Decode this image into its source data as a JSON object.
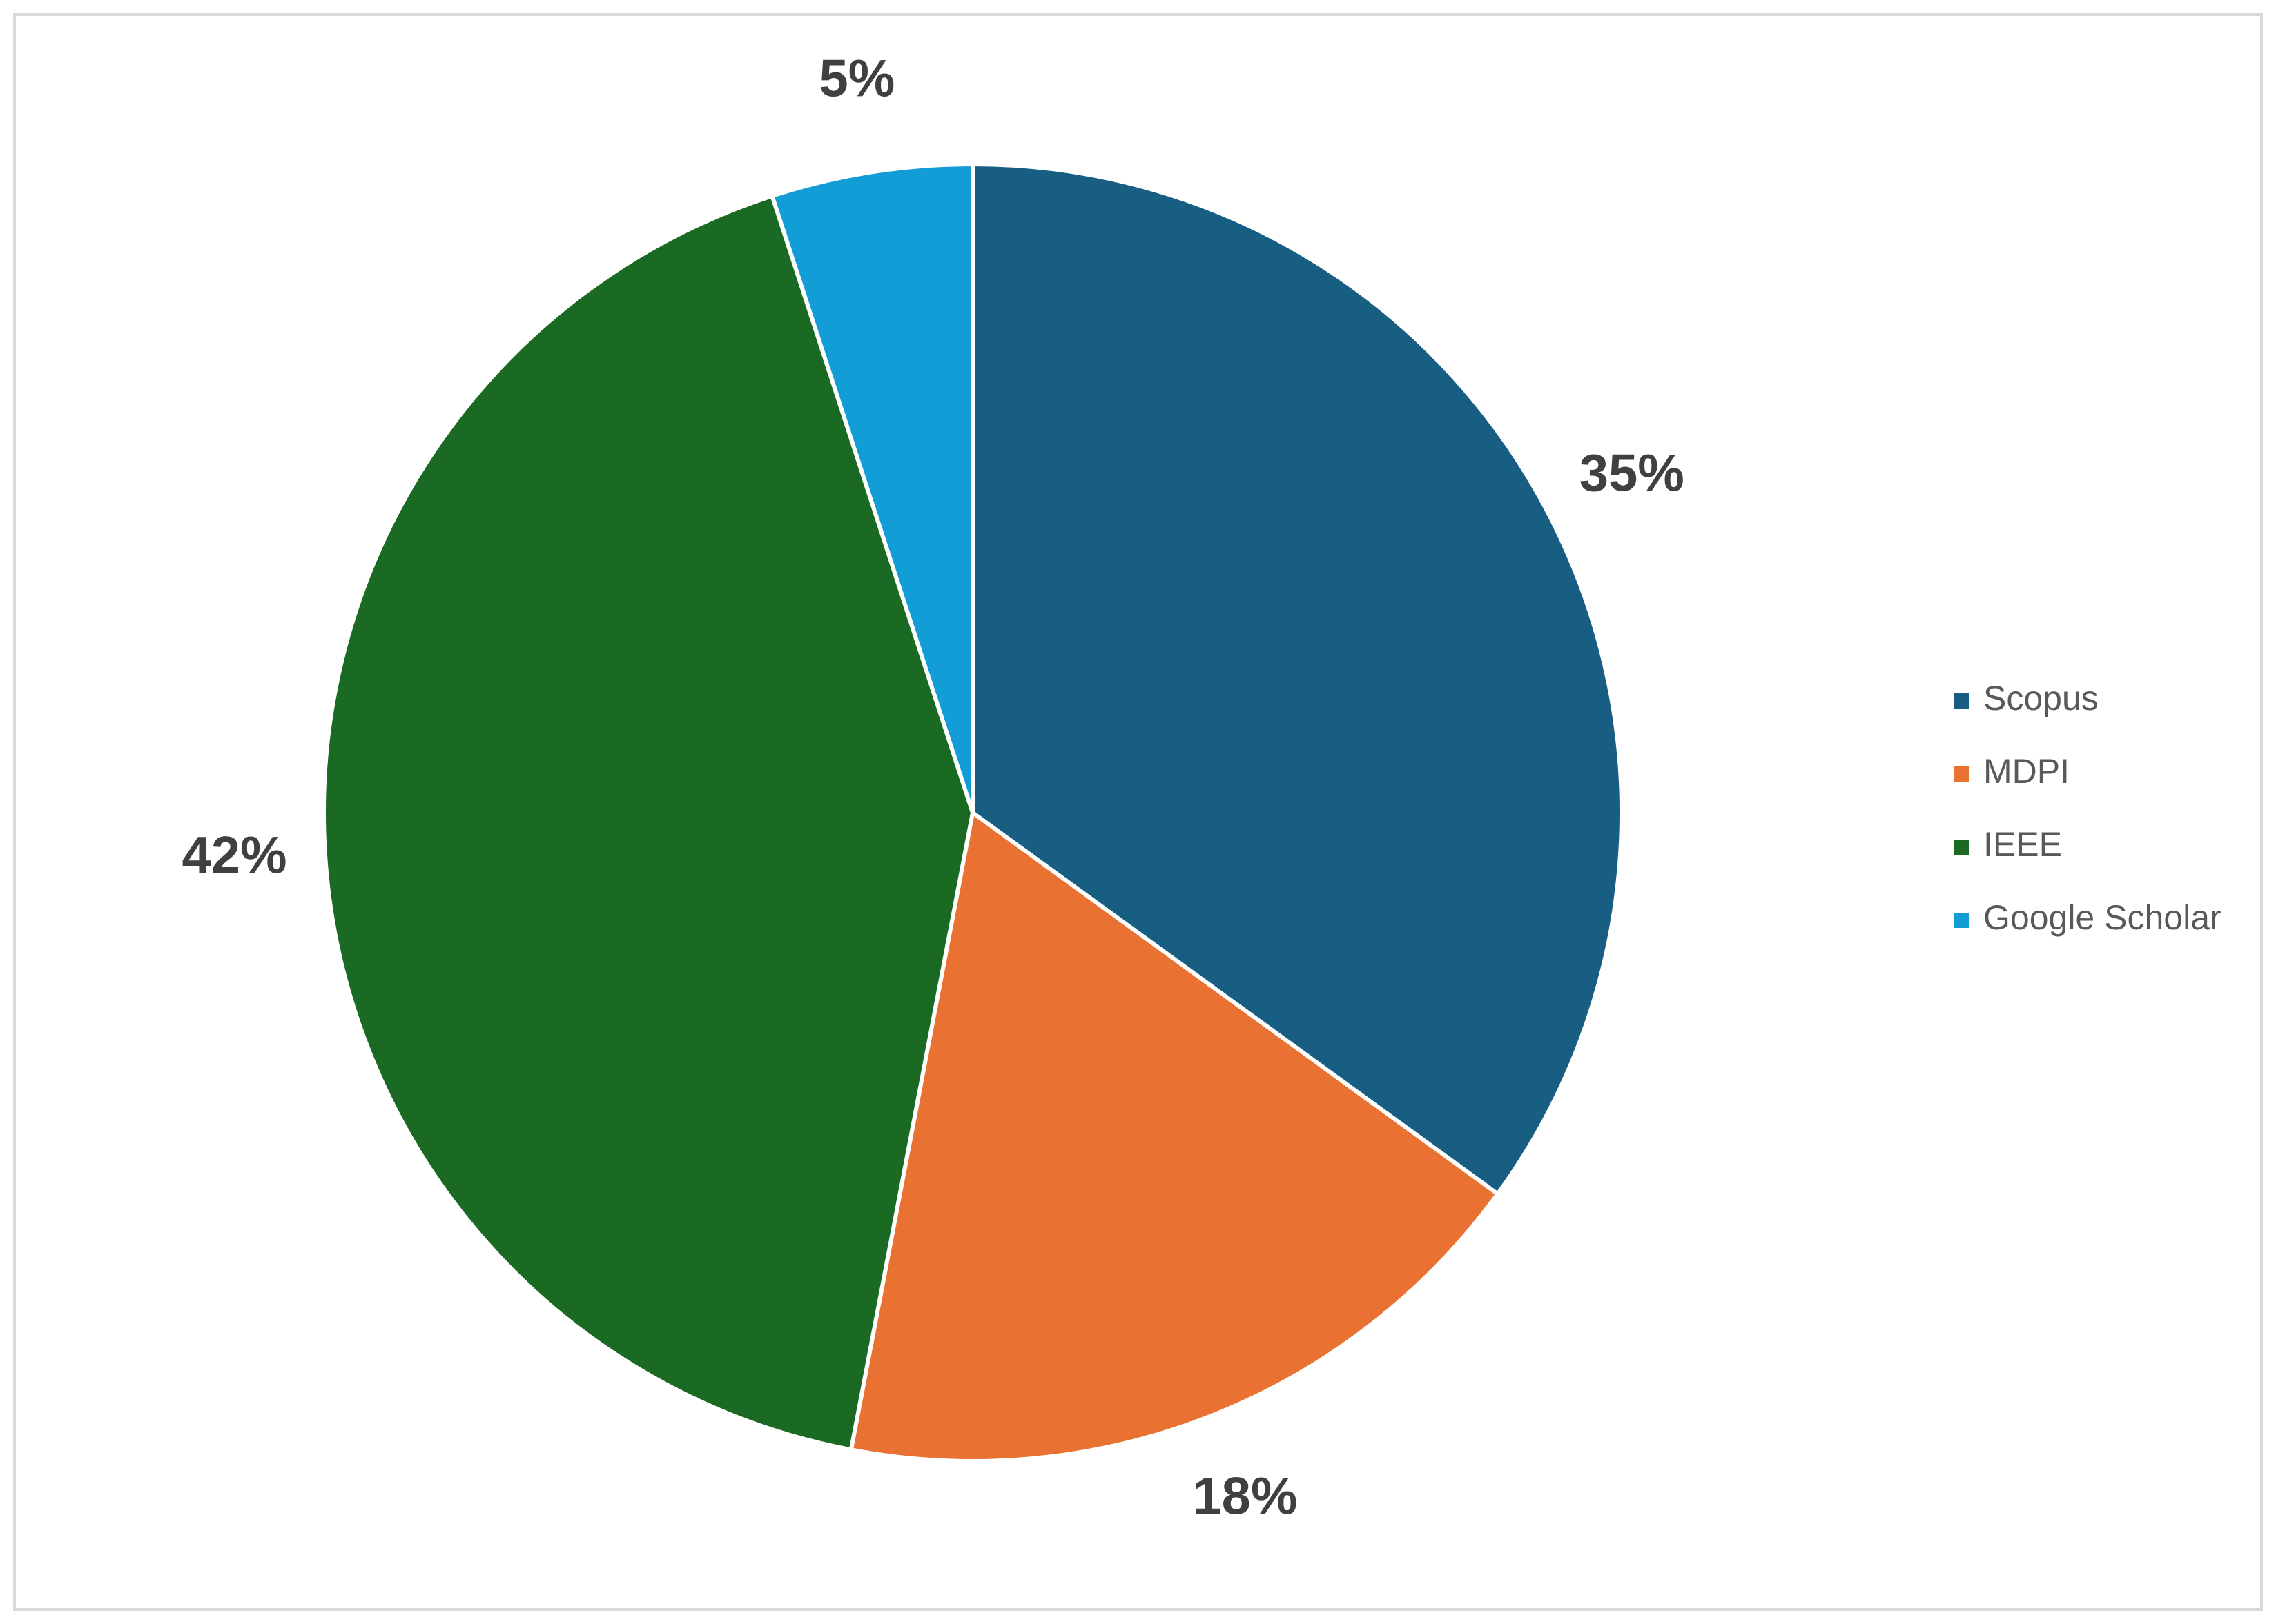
{
  "chart_data": {
    "type": "pie",
    "categories": [
      "Scopus",
      "MDPI",
      "IEEE",
      "Google Scholar"
    ],
    "values": [
      35,
      18,
      42,
      5
    ],
    "value_labels": [
      "35%",
      "18%",
      "42%",
      "5%"
    ],
    "colors": [
      "#175e82",
      "#e97132",
      "#1b6a24",
      "#129dd6"
    ],
    "legend": "right"
  }
}
